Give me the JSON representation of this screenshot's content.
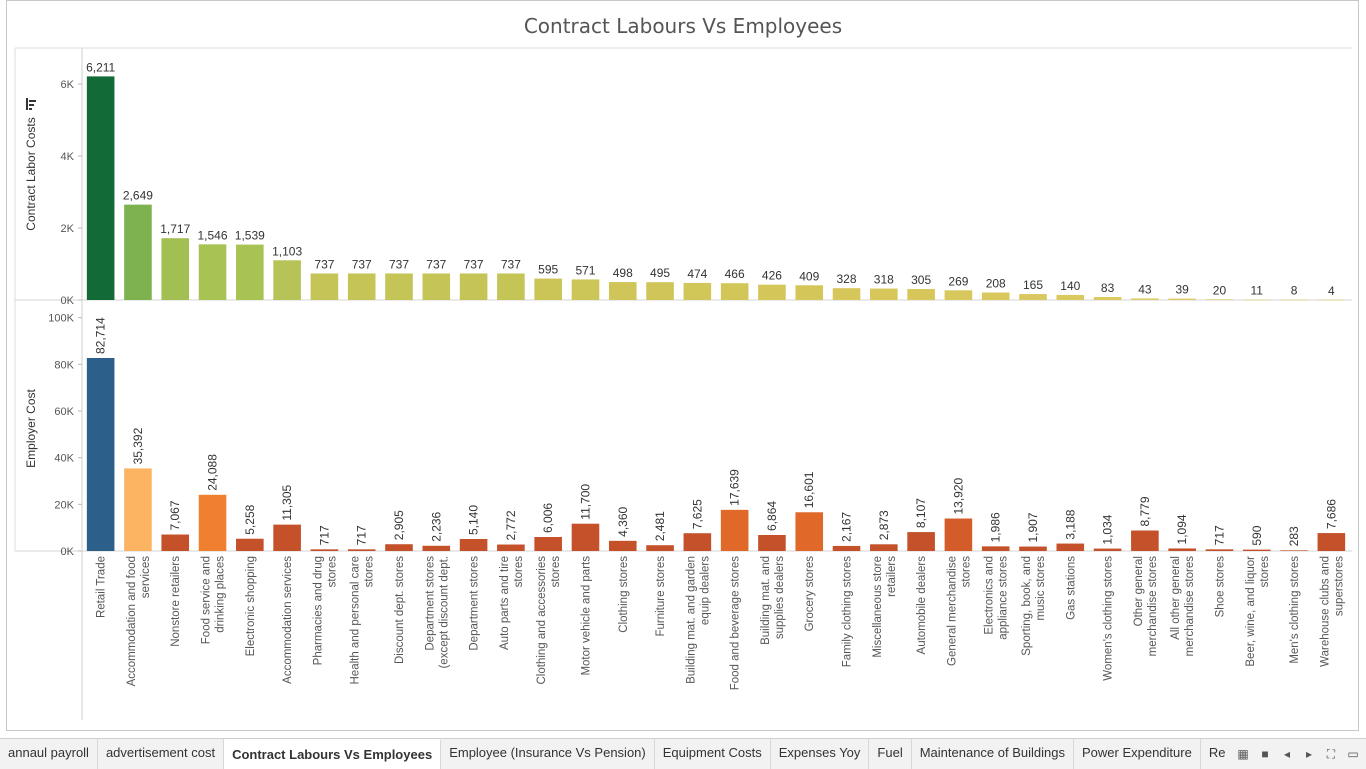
{
  "chart_data": {
    "type": "bar",
    "title": "Contract Labours Vs Employees",
    "categories": [
      "Retail Trade",
      "Accommodation and food services",
      "Nonstore retailers",
      "Food service and drinking places",
      "Electronic shopping",
      "Accommodation services",
      "Pharmacies and drug stores",
      "Health and personal care stores",
      "Discount dept. stores",
      "Department stores (except discount dept. stores)",
      "Department stores",
      "Auto parts and tire stores",
      "Clothing and accessories stores",
      "Motor vehicle and parts",
      "Clothing stores",
      "Furniture stores",
      "Building mat. and garden equip dealers",
      "Food and beverage stores",
      "Building mat. and supplies dealers",
      "Grocery stores",
      "Family clothing stores",
      "Miscellaneous store retailers",
      "Automobile dealers",
      "General merchandise stores",
      "Electronics and appliance stores",
      "Sporting, book, and music stores",
      "Gas stations",
      "Women's clothing stores",
      "Other general merchandise stores",
      "All other general merchandise stores",
      "Shoe stores",
      "Beer, wine, and liquor stores",
      "Men's clothing stores",
      "Warehouse clubs and superstores"
    ],
    "series": [
      {
        "name": "Contract Labor Costs",
        "ylabel": "Contract Labor Costs",
        "ylim": [
          0,
          7000
        ],
        "ticks": [
          0,
          2000,
          4000,
          6000
        ],
        "tick_labels": [
          "0K",
          "2K",
          "4K",
          "6K"
        ],
        "values": [
          6211,
          2649,
          1717,
          1546,
          1539,
          1103,
          737,
          737,
          737,
          737,
          737,
          737,
          595,
          571,
          498,
          495,
          474,
          466,
          426,
          409,
          328,
          318,
          305,
          269,
          208,
          165,
          140,
          83,
          43,
          39,
          20,
          11,
          8,
          4
        ],
        "labels": [
          "6,211",
          "2,649",
          "1,717",
          "1,546",
          "1,539",
          "1,103",
          "737",
          "737",
          "737",
          "737",
          "737",
          "737",
          "595",
          "571",
          "498",
          "495",
          "474",
          "466",
          "426",
          "409",
          "328",
          "318",
          "305",
          "269",
          "208",
          "165",
          "140",
          "83",
          "43",
          "39",
          "20",
          "11",
          "8",
          "4"
        ],
        "color_scale": [
          "#e0cc6a",
          "#d6c659",
          "#a9c254",
          "#62a84a",
          "#126b36"
        ]
      },
      {
        "name": "Employer Cost",
        "ylabel": "Employer Cost",
        "ylim": [
          0,
          105000
        ],
        "ticks": [
          0,
          20000,
          40000,
          60000,
          80000,
          100000
        ],
        "tick_labels": [
          "0K",
          "20K",
          "40K",
          "60K",
          "80K",
          "100K"
        ],
        "values": [
          82714,
          35392,
          7067,
          24088,
          5258,
          11305,
          717,
          717,
          2905,
          2236,
          5140,
          2772,
          6006,
          11700,
          4360,
          2481,
          7625,
          17639,
          6864,
          16601,
          2167,
          2873,
          8107,
          13920,
          1986,
          1907,
          3188,
          1034,
          8779,
          1094,
          717,
          590,
          283,
          7686
        ],
        "labels": [
          "82,714",
          "35,392",
          "7,067",
          "24,088",
          "5,258",
          "11,305",
          "717",
          "717",
          "2,905",
          "2,236",
          "5,140",
          "2,772",
          "6,006",
          "11,700",
          "4,360",
          "2,481",
          "7,625",
          "17,639",
          "6,864",
          "16,601",
          "2,167",
          "2,873",
          "8,107",
          "13,920",
          "1,986",
          "1,907",
          "3,188",
          "1,034",
          "8,779",
          "1,094",
          "717",
          "590",
          "283",
          "7,686"
        ],
        "colors": [
          "#2d5f8b",
          "#fdb462",
          "#c4512a",
          "#f08030",
          "#c4512a",
          "#c4512a",
          "#c4512a",
          "#c4512a",
          "#c4512a",
          "#c4512a",
          "#c4512a",
          "#c4512a",
          "#c4512a",
          "#c4512a",
          "#c4512a",
          "#c4512a",
          "#c4512a",
          "#e0692a",
          "#c4512a",
          "#e0692a",
          "#c4512a",
          "#c4512a",
          "#c4512a",
          "#d45c2a",
          "#c4512a",
          "#c4512a",
          "#c4512a",
          "#c4512a",
          "#c4512a",
          "#c4512a",
          "#c4512a",
          "#c4512a",
          "#c4512a",
          "#c4512a"
        ]
      }
    ],
    "grid": false,
    "legend": "none"
  },
  "tabs": [
    {
      "label": "annaul payroll",
      "active": false
    },
    {
      "label": "advertisement cost",
      "active": false
    },
    {
      "label": "Contract Labours Vs Employees",
      "active": true
    },
    {
      "label": "Employee (Insurance Vs Pension)",
      "active": false
    },
    {
      "label": "Equipment Costs",
      "active": false
    },
    {
      "label": "Expenses Yoy",
      "active": false
    },
    {
      "label": "Fuel",
      "active": false
    },
    {
      "label": "Maintenance of Buildings",
      "active": false
    },
    {
      "label": "Power Expenditure",
      "active": false
    },
    {
      "label": "Rental Paymer",
      "active": false
    }
  ],
  "icons": [
    "grid-view-icon",
    "single-view-icon",
    "previous-icon",
    "next-icon",
    "fullscreen-icon",
    "present-icon",
    "sort-icon"
  ]
}
